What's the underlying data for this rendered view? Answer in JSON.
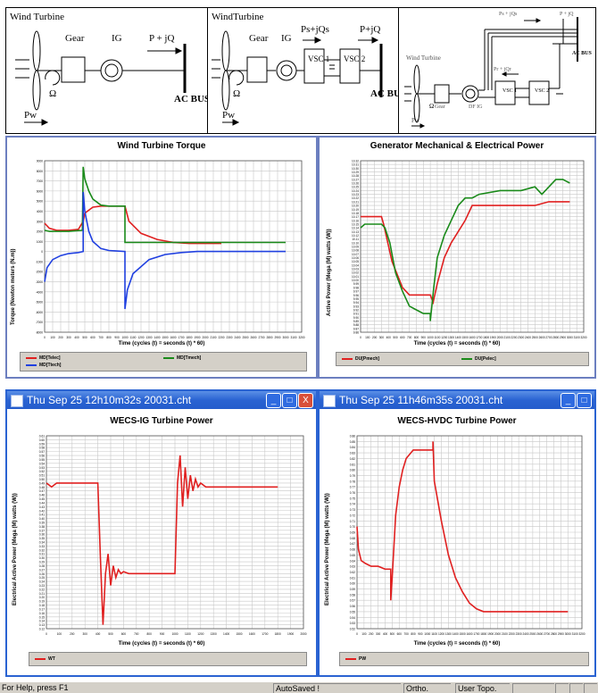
{
  "diagrams": {
    "ig": {
      "turbine_label": "Wind Turbine",
      "gear": "Gear",
      "ig": "IG",
      "power": "P + jQ",
      "omega": "Ω",
      "bus": "AC BUS",
      "pw": "Pw"
    },
    "hvdc": {
      "turbine_label": "WindTurbine",
      "gear": "Gear",
      "ig": "IG",
      "ps": "Ps+jQs",
      "power": "P+jQ",
      "vsc1": "VSC 1",
      "vsc2": "VSC 2",
      "omega": "Ω",
      "bus": "AC BUS",
      "pw": "Pw"
    },
    "dfig": {
      "turbine_label": "Wind Turbine",
      "gear": "Gear",
      "dfig": "DF IG",
      "ps": "Ps + jQs",
      "p": "P + jQ",
      "pr": "Pr + jQr",
      "vsc1": "VSC 1",
      "vsc2": "VSC 2",
      "omega": "Ω",
      "bus": "AC BUS",
      "pw": "Pw"
    }
  },
  "windows": {
    "ig": {
      "title": "Thu Sep 25 12h10m32s 20031.cht"
    },
    "hvdc": {
      "title": "Thu Sep 25 11h46m35s 20031.cht"
    }
  },
  "charts": {
    "torque": {
      "title": "Wind Turbine Torque",
      "xlabel": "Time (cycles (t) = seconds (t) * 60)",
      "ylabel": "Torque (Newton meters (N.m))",
      "legend": [
        "MD[Telec]",
        "MD[Tmech]",
        "MD[Ttech]"
      ]
    },
    "genpower": {
      "title": "Generator Mechanical & Electrical Power",
      "xlabel": "Time (cycles (t) = seconds (t) * 60)",
      "ylabel": "Active Power (Mega (M) watts (W))",
      "legend": [
        "DU[Pmech]",
        "DU[Pelec]"
      ]
    },
    "igpower": {
      "title": "WECS-IG Turbine Power",
      "xlabel": "Time (cycles (t) = seconds (t) * 60)",
      "ylabel": "Electrical Active Power (Mega (M) watts (W))",
      "legend": [
        "WT"
      ]
    },
    "hvdcpower": {
      "title": "WECS-HVDC Turbine Power",
      "xlabel": "Time (cycles (t) = seconds (t) * 60)",
      "ylabel": "Electrical Active Power (Mega (M) watts (W))",
      "legend": [
        "PW"
      ]
    }
  },
  "chart_data": [
    {
      "type": "line",
      "title": "Wind Turbine Torque",
      "xlabel": "Time (cycles (t) = seconds (t) * 60)",
      "ylabel": "Torque (Newton meters (N.m))",
      "xlim": [
        0,
        3200
      ],
      "ylim": [
        -8000,
        9000
      ],
      "ytick_step": 1000,
      "xtick_step": 100,
      "series": [
        {
          "name": "MD[Telec]",
          "color": "#e02020",
          "x": [
            0,
            60,
            150,
            300,
            420,
            480,
            500,
            600,
            700,
            800,
            1000,
            1000,
            1050,
            1200,
            1400,
            1600,
            1800,
            2000,
            2200
          ],
          "y": [
            2800,
            2300,
            2100,
            2100,
            2200,
            3000,
            3800,
            4400,
            4500,
            4500,
            4500,
            4500,
            3000,
            1800,
            1200,
            900,
            800,
            800,
            800
          ]
        },
        {
          "name": "MD[Tmech]",
          "color": "#1a8a1a",
          "x": [
            0,
            60,
            150,
            300,
            470,
            480,
            500,
            550,
            600,
            700,
            800,
            1000,
            1000,
            1200,
            1400,
            1600,
            1800,
            2000,
            2400,
            3000
          ],
          "y": [
            2100,
            2000,
            2000,
            2000,
            2100,
            8400,
            7200,
            6000,
            5200,
            4600,
            4500,
            4500,
            900,
            900,
            900,
            900,
            900,
            900,
            900,
            900
          ]
        },
        {
          "name": "MD[Ttech]",
          "color": "#2040e0",
          "x": [
            0,
            30,
            100,
            200,
            300,
            420,
            480,
            480,
            500,
            550,
            600,
            700,
            800,
            1000,
            1000,
            1030,
            1100,
            1300,
            1500,
            1700,
            1900,
            2200,
            3000
          ],
          "y": [
            -3000,
            -1600,
            -800,
            -400,
            -200,
            -100,
            0,
            5900,
            4000,
            2000,
            1000,
            300,
            100,
            0,
            -5700,
            -3800,
            -2200,
            -800,
            -300,
            -100,
            0,
            0,
            0
          ]
        }
      ]
    },
    {
      "type": "line",
      "title": "Generator Mechanical & Electrical Power",
      "xlabel": "Time (cycles (t) = seconds (t) * 60)",
      "ylabel": "Active Power (Mega (M) watts (W))",
      "xlim": [
        0,
        3200
      ],
      "ylim": [
        9.86,
        10.32
      ],
      "ytick_step": 0.01,
      "xtick_step": 100,
      "series": [
        {
          "name": "DU[Pmech]",
          "color": "#e02020",
          "x": [
            0,
            300,
            330,
            450,
            600,
            700,
            800,
            900,
            1000,
            1040,
            1100,
            1200,
            1300,
            1400,
            1500,
            1600,
            2000,
            2500,
            2700,
            2900,
            3000
          ],
          "y": [
            10.17,
            10.17,
            10.15,
            10.05,
            9.98,
            9.96,
            9.96,
            9.96,
            9.96,
            9.94,
            9.99,
            10.06,
            10.1,
            10.13,
            10.16,
            10.2,
            10.2,
            10.2,
            10.21,
            10.21,
            10.21
          ]
        },
        {
          "name": "DU[Pelec]",
          "color": "#1a8a1a",
          "x": [
            0,
            60,
            300,
            350,
            420,
            500,
            600,
            700,
            800,
            900,
            1000,
            1000,
            1050,
            1100,
            1200,
            1300,
            1400,
            1500,
            1600,
            1700,
            2000,
            2300,
            2500,
            2600,
            2800,
            2900,
            3000
          ],
          "y": [
            10.14,
            10.15,
            10.15,
            10.14,
            10.1,
            10.02,
            9.97,
            9.93,
            9.92,
            9.91,
            9.91,
            9.89,
            9.98,
            10.06,
            10.12,
            10.16,
            10.2,
            10.22,
            10.22,
            10.23,
            10.24,
            10.24,
            10.25,
            10.23,
            10.27,
            10.27,
            10.26
          ]
        }
      ]
    },
    {
      "type": "line",
      "title": "WECS-IG Turbine Power",
      "xlabel": "Time (cycles (t) = seconds (t) * 60)",
      "ylabel": "Electrical Active Power (Mega (M) watts (W))",
      "xlim": [
        0,
        2000
      ],
      "ylim": [
        0.12,
        0.61
      ],
      "ytick_step": 0.01,
      "xtick_step": 100,
      "series": [
        {
          "name": "WT",
          "color": "#e02020",
          "x": [
            0,
            40,
            80,
            120,
            300,
            400,
            420,
            440,
            460,
            480,
            500,
            520,
            540,
            560,
            580,
            600,
            640,
            1000,
            1000,
            1020,
            1040,
            1060,
            1080,
            1100,
            1120,
            1140,
            1160,
            1180,
            1200,
            1240,
            1300,
            1800
          ],
          "y": [
            0.49,
            0.48,
            0.49,
            0.49,
            0.49,
            0.49,
            0.3,
            0.13,
            0.26,
            0.31,
            0.23,
            0.28,
            0.25,
            0.27,
            0.26,
            0.265,
            0.26,
            0.26,
            0.26,
            0.49,
            0.56,
            0.43,
            0.53,
            0.45,
            0.51,
            0.47,
            0.5,
            0.48,
            0.49,
            0.48,
            0.48,
            0.48
          ]
        }
      ]
    },
    {
      "type": "line",
      "title": "WECS-HVDC Turbine Power",
      "xlabel": "Time (cycles (t) = seconds (t) * 60)",
      "ylabel": "Electrical Active Power (Mega (M) watts (W))",
      "xlim": [
        0,
        3200
      ],
      "ylim": [
        0.52,
        0.86
      ],
      "ytick_step": 0.01,
      "xtick_step": 100,
      "series": [
        {
          "name": "PW",
          "color": "#e02020",
          "x": [
            0,
            20,
            60,
            120,
            200,
            300,
            400,
            460,
            480,
            480,
            500,
            550,
            600,
            650,
            700,
            800,
            900,
            1000,
            1050,
            1080,
            1080,
            1100,
            1200,
            1300,
            1400,
            1500,
            1600,
            1700,
            1800,
            2000,
            2400,
            3000
          ],
          "y": [
            0.7,
            0.66,
            0.64,
            0.635,
            0.63,
            0.63,
            0.625,
            0.625,
            0.625,
            0.57,
            0.61,
            0.72,
            0.77,
            0.8,
            0.82,
            0.835,
            0.835,
            0.835,
            0.835,
            0.835,
            0.85,
            0.78,
            0.71,
            0.65,
            0.61,
            0.585,
            0.565,
            0.555,
            0.55,
            0.55,
            0.55,
            0.55
          ]
        }
      ]
    }
  ],
  "status": {
    "help": "For Help, press F1",
    "autosaved": "AutoSaved !",
    "ortho": "Ortho.",
    "usertopo": "User Topo."
  }
}
